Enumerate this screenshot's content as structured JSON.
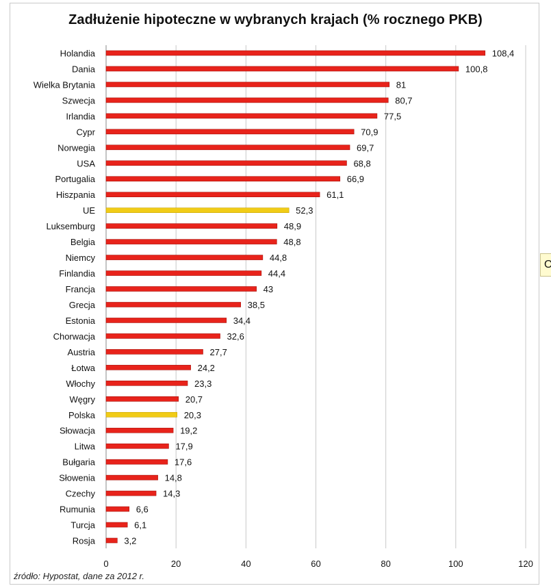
{
  "chart_data": {
    "type": "bar",
    "orientation": "horizontal",
    "title": "Zadłużenie hipoteczne w wybranych krajach (% rocznego PKB)",
    "categories": [
      "Holandia",
      "Dania",
      "Wielka Brytania",
      "Szwecja",
      "Irlandia",
      "Cypr",
      "Norwegia",
      "USA",
      "Portugalia",
      "Hiszpania",
      "UE",
      "Luksemburg",
      "Belgia",
      "Niemcy",
      "Finlandia",
      "Francja",
      "Grecja",
      "Estonia",
      "Chorwacja",
      "Austria",
      "Łotwa",
      "Włochy",
      "Węgry",
      "Polska",
      "Słowacja",
      "Litwa",
      "Bułgaria",
      "Słowenia",
      "Czechy",
      "Rumunia",
      "Turcja",
      "Rosja"
    ],
    "values": [
      108.4,
      100.8,
      81,
      80.7,
      77.5,
      70.9,
      69.7,
      68.8,
      66.9,
      61.1,
      52.3,
      48.9,
      48.8,
      44.8,
      44.4,
      43,
      38.5,
      34.4,
      32.6,
      27.7,
      24.2,
      23.3,
      20.7,
      20.3,
      19.2,
      17.9,
      17.6,
      14.8,
      14.3,
      6.6,
      6.1,
      3.2
    ],
    "value_labels": [
      "108,4",
      "100,8",
      "81",
      "80,7",
      "77,5",
      "70,9",
      "69,7",
      "68,8",
      "66,9",
      "61,1",
      "52,3",
      "48,9",
      "48,8",
      "44,8",
      "44,4",
      "43",
      "38,5",
      "34,4",
      "32,6",
      "27,7",
      "24,2",
      "23,3",
      "20,7",
      "20,3",
      "19,2",
      "17,9",
      "17,6",
      "14,8",
      "14,3",
      "6,6",
      "6,1",
      "3,2"
    ],
    "highlighted": [
      "UE",
      "Polska"
    ],
    "xlim": [
      0,
      120
    ],
    "xticks": [
      "0",
      "20",
      "40",
      "60",
      "80",
      "100",
      "120"
    ],
    "grid": true,
    "xlabel": "",
    "ylabel": ""
  },
  "colors": {
    "bar": "#e8231b",
    "bar_highlight": "#f1cc17",
    "grid": "#c8c8c8"
  },
  "source_note": "źródło: Hypostat, dane za 2012 r.",
  "tooltip_text": "O"
}
